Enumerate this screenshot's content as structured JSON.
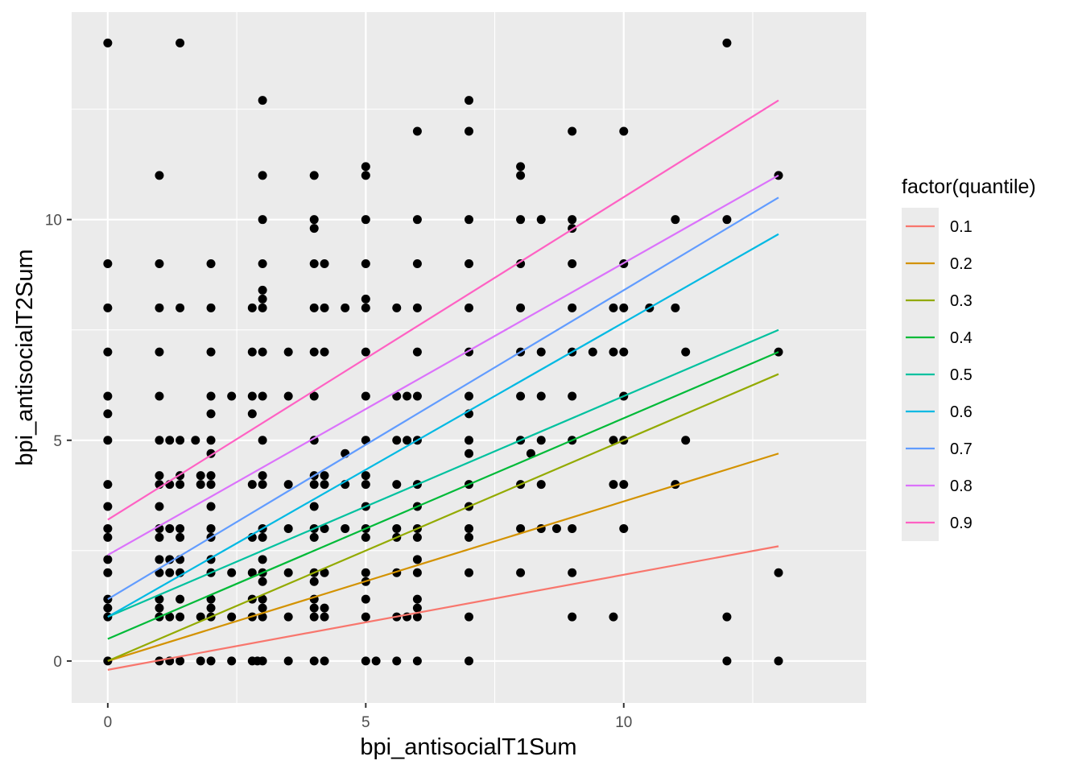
{
  "chart_data": {
    "type": "scatter",
    "xlabel": "bpi_antisocialT1Sum",
    "ylabel": "bpi_antisocialT2Sum",
    "xlim": [
      -0.7,
      14.7
    ],
    "ylim": [
      -0.95,
      14.7
    ],
    "x_ticks": [
      0,
      5,
      10
    ],
    "y_ticks": [
      0,
      5,
      10
    ],
    "x_minor": [
      2.5,
      7.5,
      12.5
    ],
    "y_minor": [
      2.5,
      7.5,
      12.5
    ],
    "x_tick_labels": [
      "0",
      "5",
      "10"
    ],
    "y_tick_labels": [
      "0",
      "5",
      "10"
    ],
    "grid": true,
    "panel_color": "#ebebeb",
    "point_color": "#000000",
    "legend": {
      "title": "factor(quantile)",
      "position": "right"
    },
    "series": [
      {
        "name": "0.1",
        "color": "#F8766D",
        "x": [
          0,
          13
        ],
        "y": [
          -0.2,
          2.6
        ]
      },
      {
        "name": "0.2",
        "color": "#D39200",
        "x": [
          0,
          13
        ],
        "y": [
          0,
          4.7
        ]
      },
      {
        "name": "0.3",
        "color": "#93AA00",
        "x": [
          0,
          13
        ],
        "y": [
          0,
          6.5
        ]
      },
      {
        "name": "0.4",
        "color": "#00BA38",
        "x": [
          0,
          13
        ],
        "y": [
          0.5,
          7
        ]
      },
      {
        "name": "0.5",
        "color": "#00C19F",
        "x": [
          0,
          13
        ],
        "y": [
          1,
          7.5
        ]
      },
      {
        "name": "0.6",
        "color": "#00B9E3",
        "x": [
          0,
          13
        ],
        "y": [
          1,
          9.67
        ]
      },
      {
        "name": "0.7",
        "color": "#619CFF",
        "x": [
          0,
          13
        ],
        "y": [
          1.4,
          10.5
        ]
      },
      {
        "name": "0.8",
        "color": "#DB72FB",
        "x": [
          0,
          13
        ],
        "y": [
          2.4,
          11
        ]
      },
      {
        "name": "0.9",
        "color": "#FF61C3",
        "x": [
          0,
          13
        ],
        "y": [
          3.2,
          12.7
        ]
      }
    ],
    "points": [
      [
        0,
        14
      ],
      [
        1.4,
        14
      ],
      [
        12,
        14
      ],
      [
        3,
        12.7
      ],
      [
        7,
        12.7
      ],
      [
        6,
        12
      ],
      [
        7,
        12
      ],
      [
        9,
        12
      ],
      [
        10,
        12
      ],
      [
        5,
        11.2
      ],
      [
        8,
        11.2
      ],
      [
        1,
        11
      ],
      [
        3,
        11
      ],
      [
        4,
        11
      ],
      [
        5,
        11
      ],
      [
        8,
        11
      ],
      [
        13,
        11
      ],
      [
        3,
        10
      ],
      [
        4,
        10
      ],
      [
        5,
        10
      ],
      [
        6,
        10
      ],
      [
        7,
        10
      ],
      [
        8,
        10
      ],
      [
        8.4,
        10
      ],
      [
        9,
        10
      ],
      [
        11,
        10
      ],
      [
        12,
        10
      ],
      [
        4,
        9.8
      ],
      [
        9,
        9.8
      ],
      [
        0,
        9
      ],
      [
        1,
        9
      ],
      [
        2,
        9
      ],
      [
        3,
        9
      ],
      [
        4,
        9
      ],
      [
        4.2,
        9
      ],
      [
        5,
        9
      ],
      [
        6,
        9
      ],
      [
        7,
        9
      ],
      [
        8,
        9
      ],
      [
        9,
        9
      ],
      [
        10,
        9
      ],
      [
        3,
        8.4
      ],
      [
        3,
        8.2
      ],
      [
        5,
        8.2
      ],
      [
        0,
        8
      ],
      [
        1,
        8
      ],
      [
        1.4,
        8
      ],
      [
        2,
        8
      ],
      [
        2.8,
        8
      ],
      [
        3,
        8
      ],
      [
        4,
        8
      ],
      [
        4.2,
        8
      ],
      [
        4.6,
        8
      ],
      [
        5,
        8
      ],
      [
        5.6,
        8
      ],
      [
        6,
        8
      ],
      [
        7,
        8
      ],
      [
        8,
        8
      ],
      [
        9,
        8
      ],
      [
        9.8,
        8
      ],
      [
        10,
        8
      ],
      [
        10.5,
        8
      ],
      [
        11,
        8
      ],
      [
        0,
        7
      ],
      [
        1,
        7
      ],
      [
        2,
        7
      ],
      [
        2.8,
        7
      ],
      [
        3,
        7
      ],
      [
        3.5,
        7
      ],
      [
        4,
        7
      ],
      [
        4.2,
        7
      ],
      [
        5,
        7
      ],
      [
        6,
        7
      ],
      [
        7,
        7
      ],
      [
        8,
        7
      ],
      [
        8.4,
        7
      ],
      [
        9,
        7
      ],
      [
        9.4,
        7
      ],
      [
        9.8,
        7
      ],
      [
        10,
        7
      ],
      [
        11.2,
        7
      ],
      [
        13,
        7
      ],
      [
        0,
        6
      ],
      [
        1,
        6
      ],
      [
        2,
        6
      ],
      [
        2.4,
        6
      ],
      [
        2.8,
        6
      ],
      [
        3,
        6
      ],
      [
        3.5,
        6
      ],
      [
        4,
        6
      ],
      [
        5,
        6
      ],
      [
        5.6,
        6
      ],
      [
        5.8,
        6
      ],
      [
        6,
        6
      ],
      [
        7,
        6
      ],
      [
        8,
        6
      ],
      [
        8.4,
        6
      ],
      [
        9,
        6
      ],
      [
        10,
        6
      ],
      [
        0,
        5.6
      ],
      [
        2,
        5.6
      ],
      [
        2.8,
        5.6
      ],
      [
        7,
        5.6
      ],
      [
        0,
        5
      ],
      [
        1,
        5
      ],
      [
        1.2,
        5
      ],
      [
        1.4,
        5
      ],
      [
        1.7,
        5
      ],
      [
        2,
        5
      ],
      [
        3,
        5
      ],
      [
        4,
        5
      ],
      [
        5,
        5
      ],
      [
        5.6,
        5
      ],
      [
        5.8,
        5
      ],
      [
        6,
        5
      ],
      [
        7,
        5
      ],
      [
        8,
        5
      ],
      [
        8.4,
        5
      ],
      [
        9,
        5
      ],
      [
        9.8,
        5
      ],
      [
        10,
        5
      ],
      [
        11.2,
        5
      ],
      [
        2,
        4.7
      ],
      [
        4.6,
        4.7
      ],
      [
        7,
        4.7
      ],
      [
        8.2,
        4.7
      ],
      [
        1,
        4.2
      ],
      [
        1.4,
        4.2
      ],
      [
        1.8,
        4.2
      ],
      [
        2,
        4.2
      ],
      [
        3,
        4.2
      ],
      [
        4,
        4.2
      ],
      [
        4.2,
        4.2
      ],
      [
        5,
        4.2
      ],
      [
        0,
        4
      ],
      [
        1,
        4
      ],
      [
        1.2,
        4
      ],
      [
        1.4,
        4
      ],
      [
        1.8,
        4
      ],
      [
        2,
        4
      ],
      [
        2.8,
        4
      ],
      [
        3,
        4
      ],
      [
        3.5,
        4
      ],
      [
        4,
        4
      ],
      [
        4.2,
        4
      ],
      [
        4.6,
        4
      ],
      [
        5,
        4
      ],
      [
        5.6,
        4
      ],
      [
        6,
        4
      ],
      [
        7,
        4
      ],
      [
        8,
        4
      ],
      [
        8.4,
        4
      ],
      [
        9.8,
        4
      ],
      [
        10,
        4
      ],
      [
        11,
        4
      ],
      [
        0,
        3.5
      ],
      [
        1,
        3.5
      ],
      [
        2,
        3.5
      ],
      [
        4,
        3.5
      ],
      [
        5,
        3.5
      ],
      [
        6,
        3.5
      ],
      [
        7,
        3.5
      ],
      [
        0,
        3
      ],
      [
        1,
        3
      ],
      [
        1.2,
        3
      ],
      [
        1.4,
        3
      ],
      [
        2,
        3
      ],
      [
        3,
        3
      ],
      [
        3.5,
        3
      ],
      [
        4,
        3
      ],
      [
        4.2,
        3
      ],
      [
        4.6,
        3
      ],
      [
        5,
        3
      ],
      [
        5.6,
        3
      ],
      [
        6,
        3
      ],
      [
        7,
        3
      ],
      [
        8,
        3
      ],
      [
        8.4,
        3
      ],
      [
        8.7,
        3
      ],
      [
        9,
        3
      ],
      [
        10,
        3
      ],
      [
        0,
        2.8
      ],
      [
        1,
        2.8
      ],
      [
        1.4,
        2.8
      ],
      [
        2,
        2.8
      ],
      [
        2.8,
        2.8
      ],
      [
        3,
        2.8
      ],
      [
        4,
        2.8
      ],
      [
        5,
        2.8
      ],
      [
        5.6,
        2.8
      ],
      [
        6,
        2.8
      ],
      [
        7,
        2.8
      ],
      [
        0,
        2.3
      ],
      [
        1,
        2.3
      ],
      [
        1.2,
        2.3
      ],
      [
        1.4,
        2.3
      ],
      [
        2,
        2.3
      ],
      [
        3,
        2.3
      ],
      [
        6,
        2.3
      ],
      [
        0,
        2
      ],
      [
        1,
        2
      ],
      [
        1.2,
        2
      ],
      [
        1.4,
        2
      ],
      [
        2,
        2
      ],
      [
        2.4,
        2
      ],
      [
        2.8,
        2
      ],
      [
        3,
        2
      ],
      [
        3.5,
        2
      ],
      [
        4,
        2
      ],
      [
        4.2,
        2
      ],
      [
        5,
        2
      ],
      [
        5.6,
        2
      ],
      [
        6,
        2
      ],
      [
        7,
        2
      ],
      [
        8,
        2
      ],
      [
        9,
        2
      ],
      [
        13,
        2
      ],
      [
        3,
        1.8
      ],
      [
        4,
        1.8
      ],
      [
        5,
        1.8
      ],
      [
        0,
        1.4
      ],
      [
        1,
        1.4
      ],
      [
        1.4,
        1.4
      ],
      [
        2,
        1.4
      ],
      [
        2.8,
        1.4
      ],
      [
        3,
        1.4
      ],
      [
        4,
        1.4
      ],
      [
        5,
        1.4
      ],
      [
        6,
        1.4
      ],
      [
        0,
        1.2
      ],
      [
        1,
        1.2
      ],
      [
        2,
        1.2
      ],
      [
        3,
        1.2
      ],
      [
        4,
        1.2
      ],
      [
        4.2,
        1.2
      ],
      [
        6,
        1.2
      ],
      [
        0,
        1
      ],
      [
        1,
        1
      ],
      [
        1.2,
        1
      ],
      [
        1.4,
        1
      ],
      [
        1.8,
        1
      ],
      [
        2,
        1
      ],
      [
        2.4,
        1
      ],
      [
        2.8,
        1
      ],
      [
        3,
        1
      ],
      [
        3.5,
        1
      ],
      [
        4,
        1
      ],
      [
        4.2,
        1
      ],
      [
        5,
        1
      ],
      [
        5.6,
        1
      ],
      [
        5.8,
        1
      ],
      [
        6,
        1
      ],
      [
        7,
        1
      ],
      [
        9,
        1
      ],
      [
        9.8,
        1
      ],
      [
        12,
        1
      ],
      [
        0,
        0
      ],
      [
        1,
        0
      ],
      [
        1.2,
        0
      ],
      [
        1.4,
        0
      ],
      [
        1.8,
        0
      ],
      [
        2,
        0
      ],
      [
        2.4,
        0
      ],
      [
        2.8,
        0
      ],
      [
        2.9,
        0
      ],
      [
        3,
        0
      ],
      [
        3.5,
        0
      ],
      [
        4,
        0
      ],
      [
        4.2,
        0
      ],
      [
        5,
        0
      ],
      [
        5.2,
        0
      ],
      [
        5.6,
        0
      ],
      [
        6,
        0
      ],
      [
        7,
        0
      ],
      [
        12,
        0
      ],
      [
        13,
        0
      ]
    ]
  }
}
